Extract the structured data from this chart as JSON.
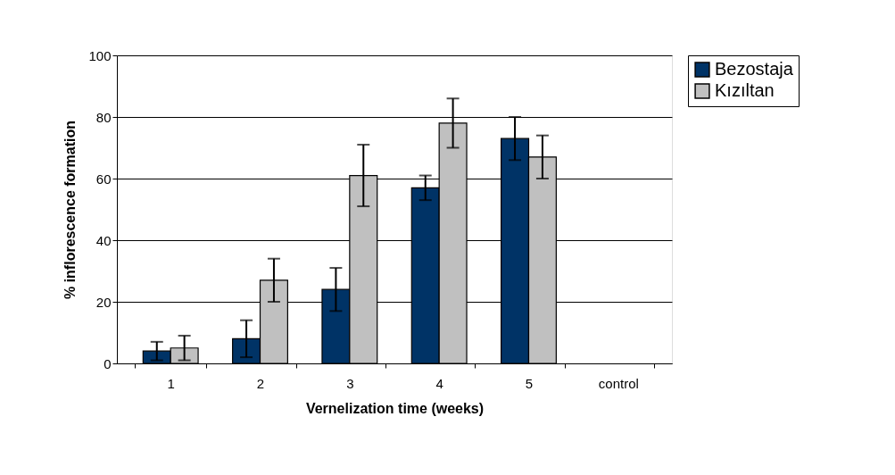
{
  "chart_data": {
    "type": "bar",
    "xlabel": "Vernelization time (weeks)",
    "ylabel": "% inflorescence formation",
    "categories": [
      "1",
      "2",
      "3",
      "4",
      "5",
      "control"
    ],
    "series": [
      {
        "name": "Bezostaja",
        "color": "#003366",
        "values": [
          4,
          8,
          24,
          57,
          73,
          0
        ],
        "errors": [
          3,
          6,
          7,
          4,
          7,
          null
        ]
      },
      {
        "name": "Kızıltan",
        "color": "#c0c0c0",
        "values": [
          5,
          27,
          61,
          78,
          67,
          0
        ],
        "errors": [
          4,
          7,
          10,
          8,
          7,
          null
        ]
      }
    ],
    "ylim": [
      0,
      100
    ],
    "yticks": [
      0,
      20,
      40,
      60,
      80,
      100
    ],
    "grid": "y",
    "legend": "right"
  }
}
